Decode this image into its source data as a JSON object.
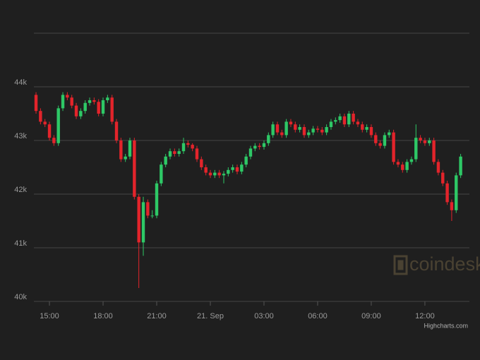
{
  "chart_data": {
    "type": "candlestick",
    "x": [
      14.25,
      14.5,
      14.75,
      15,
      15.25,
      15.5,
      15.75,
      16,
      16.25,
      16.5,
      16.75,
      17,
      17.25,
      17.5,
      17.75,
      18,
      18.25,
      18.5,
      18.75,
      19,
      19.25,
      19.5,
      19.75,
      20,
      20.25,
      20.5,
      20.75,
      21,
      21.25,
      21.5,
      21.75,
      22,
      22.25,
      22.5,
      22.75,
      23,
      23.25,
      23.5,
      23.75,
      24,
      24.25,
      24.5,
      24.75,
      25,
      25.25,
      25.5,
      25.75,
      26,
      26.25,
      26.5,
      26.75,
      27,
      27.25,
      27.5,
      27.75,
      28,
      28.25,
      28.5,
      28.75,
      29,
      29.25,
      29.5,
      29.75,
      30,
      30.25,
      30.5,
      30.75,
      31,
      31.25,
      31.5,
      31.75,
      32,
      32.25,
      32.5,
      32.75,
      33,
      33.25,
      33.5,
      33.75,
      34,
      34.25,
      34.5,
      34.75,
      35,
      35.25,
      35.5,
      35.75,
      36,
      36.25,
      36.5,
      36.75,
      37,
      37.25,
      37.5,
      37.75,
      38
    ],
    "open": [
      43850,
      43550,
      43350,
      43300,
      43050,
      42950,
      43600,
      43850,
      43800,
      43650,
      43450,
      43550,
      43700,
      43750,
      43720,
      43500,
      43750,
      43800,
      43350,
      43000,
      42650,
      42700,
      43000,
      41950,
      41100,
      41850,
      41600,
      41600,
      42200,
      42550,
      42700,
      42800,
      42750,
      42800,
      42950,
      42920,
      42850,
      42650,
      42500,
      42400,
      42350,
      42400,
      42350,
      42380,
      42450,
      42500,
      42420,
      42550,
      42700,
      42850,
      42900,
      42880,
      42950,
      43100,
      43300,
      43150,
      43100,
      43350,
      43300,
      43200,
      43250,
      43100,
      43150,
      43220,
      43200,
      43150,
      43250,
      43350,
      43380,
      43450,
      43300,
      43500,
      43350,
      43300,
      43200,
      43250,
      43100,
      42950,
      42900,
      43100,
      43150,
      42600,
      42550,
      42450,
      42600,
      42650,
      43050,
      43000,
      42950,
      43000,
      42600,
      42400,
      42200,
      41850,
      41700,
      42350
    ],
    "high": [
      43900,
      43600,
      43400,
      43350,
      43100,
      43650,
      43900,
      43900,
      43850,
      43700,
      43600,
      43750,
      43800,
      43800,
      43770,
      43800,
      43850,
      43850,
      43400,
      43050,
      42750,
      43050,
      43050,
      42000,
      41950,
      41900,
      41700,
      42250,
      42600,
      42750,
      42850,
      42850,
      42850,
      43050,
      43000,
      42950,
      42900,
      42700,
      42550,
      42450,
      42450,
      42450,
      42430,
      42500,
      42550,
      42550,
      42600,
      42750,
      42900,
      42950,
      42950,
      43000,
      43150,
      43350,
      43350,
      43200,
      43400,
      43400,
      43350,
      43300,
      43300,
      43200,
      43270,
      43270,
      43250,
      43300,
      43400,
      43430,
      43500,
      43500,
      43550,
      43550,
      43400,
      43350,
      43300,
      43300,
      43150,
      43000,
      43150,
      43200,
      43200,
      42650,
      42600,
      42650,
      42700,
      43300,
      43100,
      43050,
      43050,
      43050,
      42650,
      42450,
      42250,
      41900,
      42400,
      42750
    ],
    "low": [
      43500,
      43300,
      43250,
      43000,
      42900,
      42900,
      43550,
      43750,
      43600,
      43400,
      43400,
      43500,
      43650,
      43670,
      43450,
      43450,
      43700,
      43300,
      42950,
      42600,
      42600,
      42650,
      41900,
      40250,
      40850,
      41550,
      41550,
      41550,
      42150,
      42500,
      42650,
      42700,
      42700,
      42750,
      42870,
      42800,
      42600,
      42450,
      42350,
      42300,
      42300,
      42300,
      42200,
      42330,
      42400,
      42370,
      42370,
      42500,
      42650,
      42800,
      42830,
      42830,
      42900,
      43050,
      43100,
      43050,
      43050,
      43250,
      43150,
      43150,
      43050,
      43050,
      43100,
      43150,
      43100,
      43100,
      43200,
      43300,
      43330,
      43250,
      43250,
      43300,
      43250,
      43150,
      43150,
      43050,
      42900,
      42850,
      42850,
      43050,
      42550,
      42500,
      42400,
      42400,
      42550,
      42600,
      42950,
      42900,
      42900,
      42550,
      42350,
      42150,
      41800,
      41500,
      41650,
      42300
    ],
    "close": [
      43550,
      43350,
      43300,
      43050,
      42950,
      43600,
      43850,
      43800,
      43650,
      43450,
      43550,
      43700,
      43750,
      43720,
      43500,
      43750,
      43800,
      43350,
      43000,
      42650,
      42700,
      43000,
      41950,
      41100,
      41850,
      41600,
      41600,
      42200,
      42550,
      42700,
      42800,
      42750,
      42800,
      42950,
      42920,
      42850,
      42650,
      42500,
      42400,
      42350,
      42400,
      42350,
      42380,
      42450,
      42500,
      42420,
      42550,
      42700,
      42850,
      42900,
      42880,
      42950,
      43100,
      43300,
      43150,
      43100,
      43350,
      43300,
      43200,
      43250,
      43100,
      43150,
      43220,
      43200,
      43150,
      43250,
      43350,
      43380,
      43450,
      43300,
      43500,
      43350,
      43300,
      43200,
      43250,
      43100,
      42950,
      42900,
      43100,
      43150,
      42600,
      42550,
      42450,
      42600,
      42650,
      43050,
      43000,
      42950,
      43000,
      42600,
      42400,
      42200,
      41850,
      41700,
      42350,
      42700
    ],
    "up_color": "#2ec866",
    "down_color": "#e3242b",
    "xlim": [
      14.13,
      38.49
    ],
    "xticks": [
      {
        "value": 15,
        "label": "15:00"
      },
      {
        "value": 18,
        "label": "18:00"
      },
      {
        "value": 21,
        "label": "21:00"
      },
      {
        "value": 24,
        "label": "21. Sep"
      },
      {
        "value": 27,
        "label": "03:00"
      },
      {
        "value": 30,
        "label": "06:00"
      },
      {
        "value": 33,
        "label": "09:00"
      },
      {
        "value": 36,
        "label": "12:00"
      }
    ],
    "ylim": [
      40000,
      45000
    ],
    "yticks": [
      {
        "value": 40000,
        "label": "40k"
      },
      {
        "value": 41000,
        "label": "41k"
      },
      {
        "value": 42000,
        "label": "42k"
      },
      {
        "value": 43000,
        "label": "43k"
      },
      {
        "value": 44000,
        "label": "44k"
      }
    ],
    "grid": true,
    "watermark": "coindesk",
    "credits": "Highcharts.com"
  }
}
